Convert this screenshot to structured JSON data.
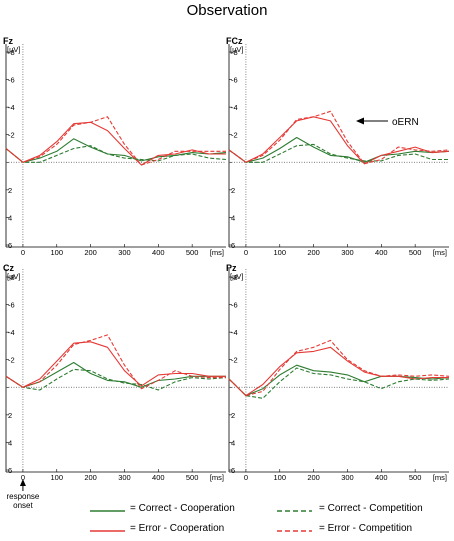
{
  "title": "Observation",
  "colors": {
    "correct": "#2e7d32",
    "error": "#e53935"
  },
  "onset_note": {
    "line1": "response",
    "line2": "onset"
  },
  "ern_note": "oERN",
  "legend": [
    {
      "label": "= Correct - Cooperation",
      "color": "#2e7d32",
      "dashed": false
    },
    {
      "label": "= Error - Cooperation",
      "color": "#e53935",
      "dashed": false
    },
    {
      "label": "= Correct - Competition",
      "color": "#2e7d32",
      "dashed": true
    },
    {
      "label": "= Error - Competition",
      "color": "#e53935",
      "dashed": true
    }
  ],
  "chart_data": [
    {
      "type": "line",
      "channel": "Fz",
      "ylabel": "[µV]",
      "xlabel": "[ms]",
      "ylim": [
        6,
        -8
      ],
      "xlim": [
        -50,
        600
      ],
      "yticks": [
        "-8",
        "-6",
        "-4",
        "-2",
        "0",
        "2",
        "4",
        "6"
      ],
      "xticks": [
        "0",
        "100",
        "200",
        "300",
        "400",
        "500"
      ],
      "x": [
        -50,
        0,
        50,
        100,
        150,
        200,
        250,
        300,
        350,
        400,
        450,
        500,
        550,
        600
      ],
      "series": [
        {
          "name": "Correct - Cooperation",
          "style": "solid",
          "color": "correct",
          "values": [
            -1,
            0,
            -0.3,
            -0.8,
            -1.7,
            -1.1,
            -0.6,
            -0.5,
            -0.1,
            -0.4,
            -0.5,
            -0.7,
            -0.6,
            -0.7
          ]
        },
        {
          "name": "Error - Cooperation",
          "style": "solid",
          "color": "error",
          "values": [
            -1,
            0,
            -0.5,
            -1.5,
            -2.8,
            -2.9,
            -2.3,
            -1.0,
            0.2,
            -0.5,
            -0.6,
            -0.9,
            -0.6,
            -0.6
          ]
        },
        {
          "name": "Correct - Competition",
          "style": "dashed",
          "color": "correct",
          "values": [
            -1,
            0,
            0,
            -0.5,
            -1.0,
            -1.2,
            -0.6,
            -0.3,
            -0.2,
            -0.1,
            -0.5,
            -0.6,
            -0.3,
            -0.2
          ]
        },
        {
          "name": "Error - Competition",
          "style": "dashed",
          "color": "error",
          "values": [
            -1,
            0,
            -0.4,
            -1.3,
            -2.7,
            -2.9,
            -3.3,
            -1.3,
            0.2,
            -0.2,
            -0.8,
            -0.8,
            -0.8,
            -0.8
          ]
        }
      ]
    },
    {
      "type": "line",
      "channel": "FCz",
      "ylabel": "[µV]",
      "xlabel": "[ms]",
      "ylim": [
        6,
        -8
      ],
      "xlim": [
        -50,
        600
      ],
      "yticks": [
        "-8",
        "-6",
        "-4",
        "-2",
        "0",
        "2",
        "4",
        "6"
      ],
      "xticks": [
        "0",
        "100",
        "200",
        "300",
        "400",
        "500"
      ],
      "x": [
        -50,
        0,
        50,
        100,
        150,
        200,
        250,
        300,
        350,
        400,
        450,
        500,
        550,
        600
      ],
      "series": [
        {
          "name": "Correct - Cooperation",
          "style": "solid",
          "color": "correct",
          "values": [
            -0.9,
            0,
            -0.3,
            -1.0,
            -1.8,
            -1.1,
            -0.5,
            -0.4,
            0,
            -0.5,
            -0.6,
            -0.8,
            -0.7,
            -0.8
          ]
        },
        {
          "name": "Error - Cooperation",
          "style": "solid",
          "color": "error",
          "values": [
            -0.9,
            0,
            -0.6,
            -1.8,
            -3.0,
            -3.3,
            -3.0,
            -1.2,
            0.1,
            -0.5,
            -0.8,
            -1.1,
            -0.7,
            -0.8
          ]
        },
        {
          "name": "Correct - Competition",
          "style": "dashed",
          "color": "correct",
          "values": [
            -0.9,
            0,
            0,
            -0.6,
            -1.2,
            -1.3,
            -0.6,
            -0.3,
            -0.1,
            -0.1,
            -0.5,
            -0.6,
            -0.2,
            -0.2
          ]
        },
        {
          "name": "Error - Competition",
          "style": "dashed",
          "color": "error",
          "values": [
            -0.9,
            0,
            -0.5,
            -1.6,
            -3.1,
            -3.3,
            -3.7,
            -1.5,
            0.1,
            -0.2,
            -1.1,
            -0.9,
            -0.8,
            -0.9
          ]
        }
      ]
    },
    {
      "type": "line",
      "channel": "Cz",
      "ylabel": "[µV]",
      "xlabel": "[ms]",
      "ylim": [
        6,
        -8
      ],
      "xlim": [
        -50,
        600
      ],
      "yticks": [
        "-8",
        "-6",
        "-4",
        "-2",
        "0",
        "2",
        "4",
        "6"
      ],
      "xticks": [
        "0",
        "100",
        "200",
        "300",
        "400",
        "500"
      ],
      "x": [
        -50,
        0,
        50,
        100,
        150,
        200,
        250,
        300,
        350,
        400,
        450,
        500,
        550,
        600
      ],
      "series": [
        {
          "name": "Correct - Cooperation",
          "style": "solid",
          "color": "correct",
          "values": [
            -0.8,
            0,
            -0.4,
            -1.1,
            -1.8,
            -1.0,
            -0.5,
            -0.4,
            0,
            -0.5,
            -0.6,
            -0.8,
            -0.8,
            -0.8
          ]
        },
        {
          "name": "Error - Cooperation",
          "style": "solid",
          "color": "error",
          "values": [
            -0.8,
            0,
            -0.6,
            -1.9,
            -3.2,
            -3.3,
            -2.9,
            -1.2,
            -0.1,
            -0.9,
            -1.0,
            -1.0,
            -0.8,
            -0.8
          ]
        },
        {
          "name": "Correct - Competition",
          "style": "dashed",
          "color": "correct",
          "values": [
            -0.8,
            0,
            0.2,
            -0.6,
            -1.3,
            -1.2,
            -0.6,
            -0.3,
            -0.2,
            0.2,
            -0.4,
            -0.7,
            -0.6,
            -0.7
          ]
        },
        {
          "name": "Error - Competition",
          "style": "dashed",
          "color": "error",
          "values": [
            -0.8,
            0,
            -0.4,
            -1.6,
            -3.1,
            -3.4,
            -3.8,
            -1.6,
            0.1,
            -0.5,
            -1.2,
            -0.8,
            -0.7,
            -0.7
          ]
        }
      ]
    },
    {
      "type": "line",
      "channel": "Pz",
      "ylabel": "[µV]",
      "xlabel": "[ms]",
      "ylim": [
        6,
        -8
      ],
      "xlim": [
        -50,
        600
      ],
      "yticks": [
        "-8",
        "-6",
        "-4",
        "-2",
        "0",
        "2",
        "4",
        "6"
      ],
      "xticks": [
        "0",
        "100",
        "200",
        "300",
        "400",
        "500"
      ],
      "x": [
        -50,
        0,
        50,
        100,
        150,
        200,
        250,
        300,
        350,
        400,
        450,
        500,
        550,
        600
      ],
      "series": [
        {
          "name": "Correct - Cooperation",
          "style": "solid",
          "color": "correct",
          "values": [
            -0.6,
            0.6,
            0.1,
            -0.9,
            -1.6,
            -1.2,
            -1.1,
            -0.9,
            -0.4,
            -0.8,
            -0.8,
            -0.7,
            -0.6,
            -0.7
          ]
        },
        {
          "name": "Error - Cooperation",
          "style": "solid",
          "color": "error",
          "values": [
            -0.6,
            0.6,
            -0.2,
            -1.5,
            -2.5,
            -2.6,
            -2.9,
            -1.9,
            -1.1,
            -0.8,
            -0.8,
            -0.6,
            -0.7,
            -0.7
          ]
        },
        {
          "name": "Correct - Competition",
          "style": "dashed",
          "color": "correct",
          "values": [
            -0.6,
            0.6,
            0.8,
            -0.4,
            -1.4,
            -1.0,
            -0.9,
            -0.6,
            -0.4,
            0.1,
            -0.4,
            -0.6,
            -0.5,
            -0.6
          ]
        },
        {
          "name": "Error - Competition",
          "style": "dashed",
          "color": "error",
          "values": [
            -0.6,
            0.6,
            0.3,
            -1.3,
            -2.6,
            -2.9,
            -3.4,
            -2.0,
            -1.2,
            -0.8,
            -0.9,
            -0.8,
            -0.9,
            -0.8
          ]
        }
      ]
    }
  ]
}
